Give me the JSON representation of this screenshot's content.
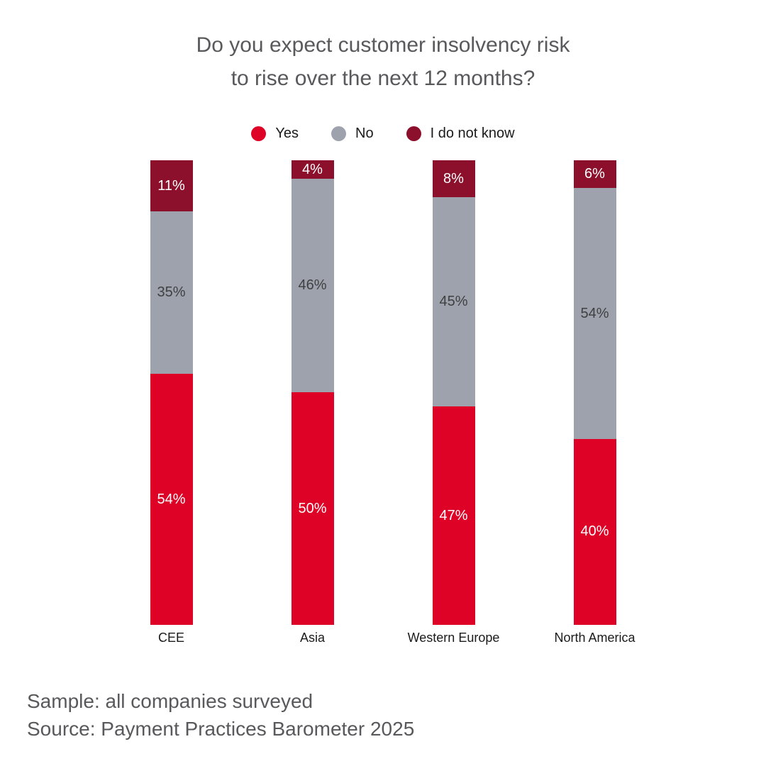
{
  "title": {
    "line1": "Do you expect customer insolvency risk",
    "line2": "to rise over the next 12 months?"
  },
  "footer": {
    "sample_note": "Sample: all companies surveyed",
    "source_note": "Source: Payment Practices Barometer 2025"
  },
  "colors": {
    "yes": "#DE0226",
    "no": "#9DA2AC",
    "i_do_not_know": "#8C102C",
    "title_text": "#58595B",
    "footer_text": "#58595B",
    "category_text": "#1A1A1A",
    "label_on_gray": "#3F4042",
    "label_on_red": "#FFFFFF"
  },
  "chart_data": {
    "type": "bar",
    "stacked": true,
    "orientation": "vertical",
    "unit": "%",
    "title": "Do you expect customer insolvency risk to rise over the next 12 months?",
    "legend_position": "top",
    "legend_labels": [
      "Yes",
      "No",
      "I do not know"
    ],
    "categories": [
      "CEE",
      "Asia",
      "Western Europe",
      "North America"
    ],
    "series": [
      {
        "name": "Yes",
        "color": "#DE0226",
        "label_color": "#FFFFFF",
        "values": [
          54,
          50,
          47,
          40
        ]
      },
      {
        "name": "No",
        "color": "#9DA2AC",
        "label_color": "#3F4042",
        "values": [
          35,
          46,
          45,
          54
        ]
      },
      {
        "name": "I do not know",
        "color": "#8C102C",
        "label_color": "#FFFFFF",
        "values": [
          11,
          4,
          8,
          6
        ]
      }
    ],
    "ylim": [
      0,
      100
    ],
    "grid": false,
    "axes_visible": false
  }
}
